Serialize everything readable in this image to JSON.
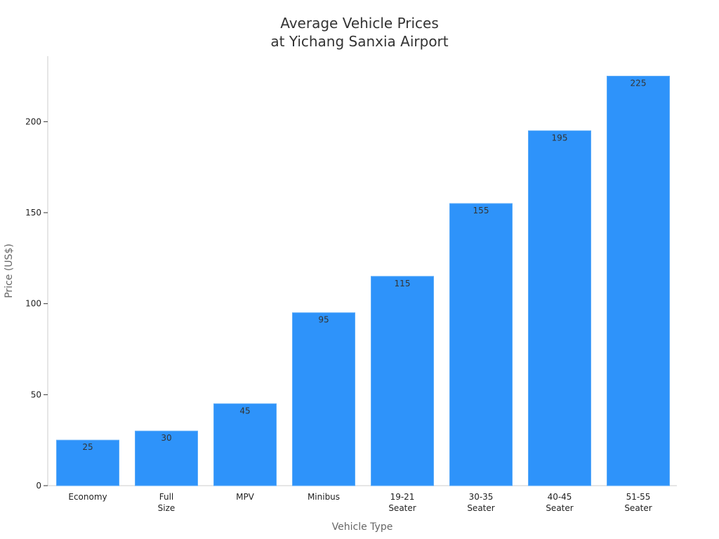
{
  "chart_data": {
    "type": "bar",
    "title": [
      "Average Vehicle Prices",
      "at Yichang Sanxia Airport"
    ],
    "xlabel": "Vehicle Type",
    "ylabel": "Price (US$)",
    "categories": [
      [
        "Economy"
      ],
      [
        "Full",
        "Size"
      ],
      [
        "MPV"
      ],
      [
        "Minibus"
      ],
      [
        "19-21",
        "Seater"
      ],
      [
        "30-35",
        "Seater"
      ],
      [
        "40-45",
        "Seater"
      ],
      [
        "51-55",
        "Seater"
      ]
    ],
    "values": [
      25,
      30,
      45,
      95,
      115,
      155,
      195,
      225
    ],
    "ylim": [
      0,
      236
    ],
    "yticks": [
      0,
      50,
      100,
      150,
      200
    ],
    "grid": false,
    "bar_color": "#2e93fa"
  }
}
